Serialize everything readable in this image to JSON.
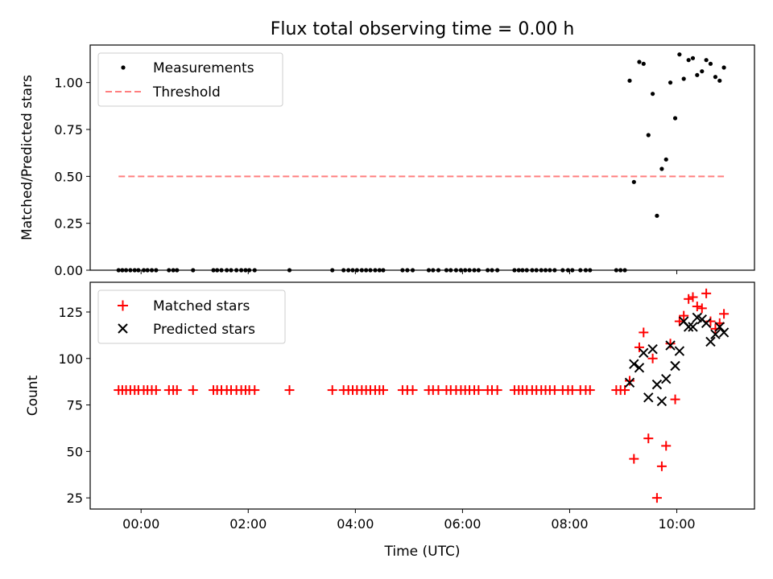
{
  "figure_title": "Flux total observing time = 0.00 h",
  "chart_data": [
    {
      "type": "scatter",
      "ylabel": "Matched/Predicted stars",
      "xlim": [
        -0.95,
        11.45
      ],
      "ylim": [
        0,
        1.2
      ],
      "y_ticks": [
        0.0,
        0.25,
        0.5,
        0.75,
        1.0
      ],
      "y_tick_labels": [
        "0.00",
        "0.25",
        "0.50",
        "0.75",
        "1.00"
      ],
      "legend_position": "top-left",
      "series": [
        {
          "name": "Measurements",
          "marker": "dot",
          "color": "#000000",
          "x": [
            -0.42,
            -0.35,
            -0.28,
            -0.2,
            -0.12,
            -0.05,
            0.05,
            0.12,
            0.2,
            0.28,
            0.52,
            0.6,
            0.67,
            0.97,
            1.35,
            1.42,
            1.5,
            1.6,
            1.68,
            1.78,
            1.87,
            1.95,
            2.02,
            2.12,
            2.77,
            3.57,
            3.78,
            3.87,
            3.95,
            4.03,
            4.12,
            4.2,
            4.28,
            4.37,
            4.45,
            4.52,
            4.88,
            4.97,
            5.07,
            5.37,
            5.45,
            5.55,
            5.7,
            5.78,
            5.88,
            5.97,
            6.05,
            6.13,
            6.22,
            6.3,
            6.47,
            6.55,
            6.65,
            6.97,
            7.05,
            7.12,
            7.2,
            7.3,
            7.38,
            7.47,
            7.55,
            7.63,
            7.72,
            7.87,
            7.97,
            8.05,
            8.2,
            8.3,
            8.38,
            8.87,
            8.95,
            9.03,
            9.12,
            9.2,
            9.3,
            9.38,
            9.47,
            9.55,
            9.63,
            9.72,
            9.8,
            9.88,
            9.97,
            10.05,
            10.13,
            10.22,
            10.3,
            10.38,
            10.47,
            10.55,
            10.63,
            10.72,
            10.8,
            10.88
          ],
          "y": [
            0,
            0,
            0,
            0,
            0,
            0,
            0,
            0,
            0,
            0,
            0,
            0,
            0,
            0,
            0,
            0,
            0,
            0,
            0,
            0,
            0,
            0,
            0,
            0,
            0,
            0,
            0,
            0,
            0,
            0,
            0,
            0,
            0,
            0,
            0,
            0,
            0,
            0,
            0,
            0,
            0,
            0,
            0,
            0,
            0,
            0,
            0,
            0,
            0,
            0,
            0,
            0,
            0,
            0,
            0,
            0,
            0,
            0,
            0,
            0,
            0,
            0,
            0,
            0,
            0,
            0,
            0,
            0,
            0,
            0,
            0,
            0,
            1.01,
            0.47,
            1.11,
            1.1,
            0.72,
            0.94,
            0.29,
            0.54,
            0.59,
            1.0,
            0.81,
            1.15,
            1.02,
            1.12,
            1.13,
            1.04,
            1.06,
            1.12,
            1.1,
            1.03,
            1.01,
            1.08
          ]
        },
        {
          "name": "Threshold",
          "style": "dashed",
          "color": "#ff7f7f",
          "x": [
            -0.42,
            10.88
          ],
          "y": [
            0.5,
            0.5
          ]
        }
      ]
    },
    {
      "type": "scatter",
      "xlabel": "Time (UTC)",
      "ylabel": "Count",
      "xlim": [
        -0.95,
        11.45
      ],
      "ylim": [
        19,
        141
      ],
      "x_ticks": [
        0,
        2,
        4,
        6,
        8,
        10
      ],
      "x_tick_labels": [
        "00:00",
        "02:00",
        "04:00",
        "06:00",
        "08:00",
        "10:00"
      ],
      "y_ticks": [
        25,
        50,
        75,
        100,
        125
      ],
      "y_tick_labels": [
        "25",
        "50",
        "75",
        "100",
        "125"
      ],
      "legend_position": "top-left",
      "series": [
        {
          "name": "Matched stars",
          "marker": "plus",
          "color": "#ff0000",
          "x": [
            -0.42,
            -0.35,
            -0.28,
            -0.2,
            -0.12,
            -0.05,
            0.05,
            0.12,
            0.2,
            0.28,
            0.52,
            0.6,
            0.67,
            0.97,
            1.35,
            1.42,
            1.5,
            1.6,
            1.68,
            1.78,
            1.87,
            1.95,
            2.02,
            2.12,
            2.77,
            3.57,
            3.78,
            3.87,
            3.95,
            4.03,
            4.12,
            4.2,
            4.28,
            4.37,
            4.45,
            4.52,
            4.88,
            4.97,
            5.07,
            5.37,
            5.45,
            5.55,
            5.7,
            5.78,
            5.88,
            5.97,
            6.05,
            6.13,
            6.22,
            6.3,
            6.47,
            6.55,
            6.65,
            6.97,
            7.05,
            7.12,
            7.2,
            7.3,
            7.38,
            7.47,
            7.55,
            7.63,
            7.72,
            7.87,
            7.97,
            8.05,
            8.2,
            8.3,
            8.38,
            8.87,
            8.95,
            9.03,
            9.12,
            9.2,
            9.3,
            9.38,
            9.47,
            9.55,
            9.63,
            9.72,
            9.8,
            9.88,
            9.97,
            10.05,
            10.13,
            10.22,
            10.3,
            10.38,
            10.47,
            10.55,
            10.63,
            10.72,
            10.8,
            10.88
          ],
          "y": [
            83,
            83,
            83,
            83,
            83,
            83,
            83,
            83,
            83,
            83,
            83,
            83,
            83,
            83,
            83,
            83,
            83,
            83,
            83,
            83,
            83,
            83,
            83,
            83,
            83,
            83,
            83,
            83,
            83,
            83,
            83,
            83,
            83,
            83,
            83,
            83,
            83,
            83,
            83,
            83,
            83,
            83,
            83,
            83,
            83,
            83,
            83,
            83,
            83,
            83,
            83,
            83,
            83,
            83,
            83,
            83,
            83,
            83,
            83,
            83,
            83,
            83,
            83,
            83,
            83,
            83,
            83,
            83,
            83,
            83,
            83,
            83,
            88,
            46,
            106,
            114,
            57,
            100,
            25,
            42,
            53,
            108,
            78,
            120,
            123,
            132,
            133,
            128,
            127,
            135,
            120,
            116,
            119,
            124
          ]
        },
        {
          "name": "Predicted stars",
          "marker": "x",
          "color": "#000000",
          "x": [
            9.12,
            9.2,
            9.3,
            9.38,
            9.47,
            9.55,
            9.63,
            9.72,
            9.8,
            9.88,
            9.97,
            10.05,
            10.13,
            10.22,
            10.3,
            10.38,
            10.47,
            10.55,
            10.63,
            10.72,
            10.8,
            10.88
          ],
          "y": [
            87,
            97,
            95,
            103,
            79,
            105,
            86,
            77,
            89,
            107,
            96,
            104,
            120,
            117,
            117,
            122,
            121,
            119,
            109,
            113,
            117,
            114
          ]
        }
      ]
    }
  ]
}
